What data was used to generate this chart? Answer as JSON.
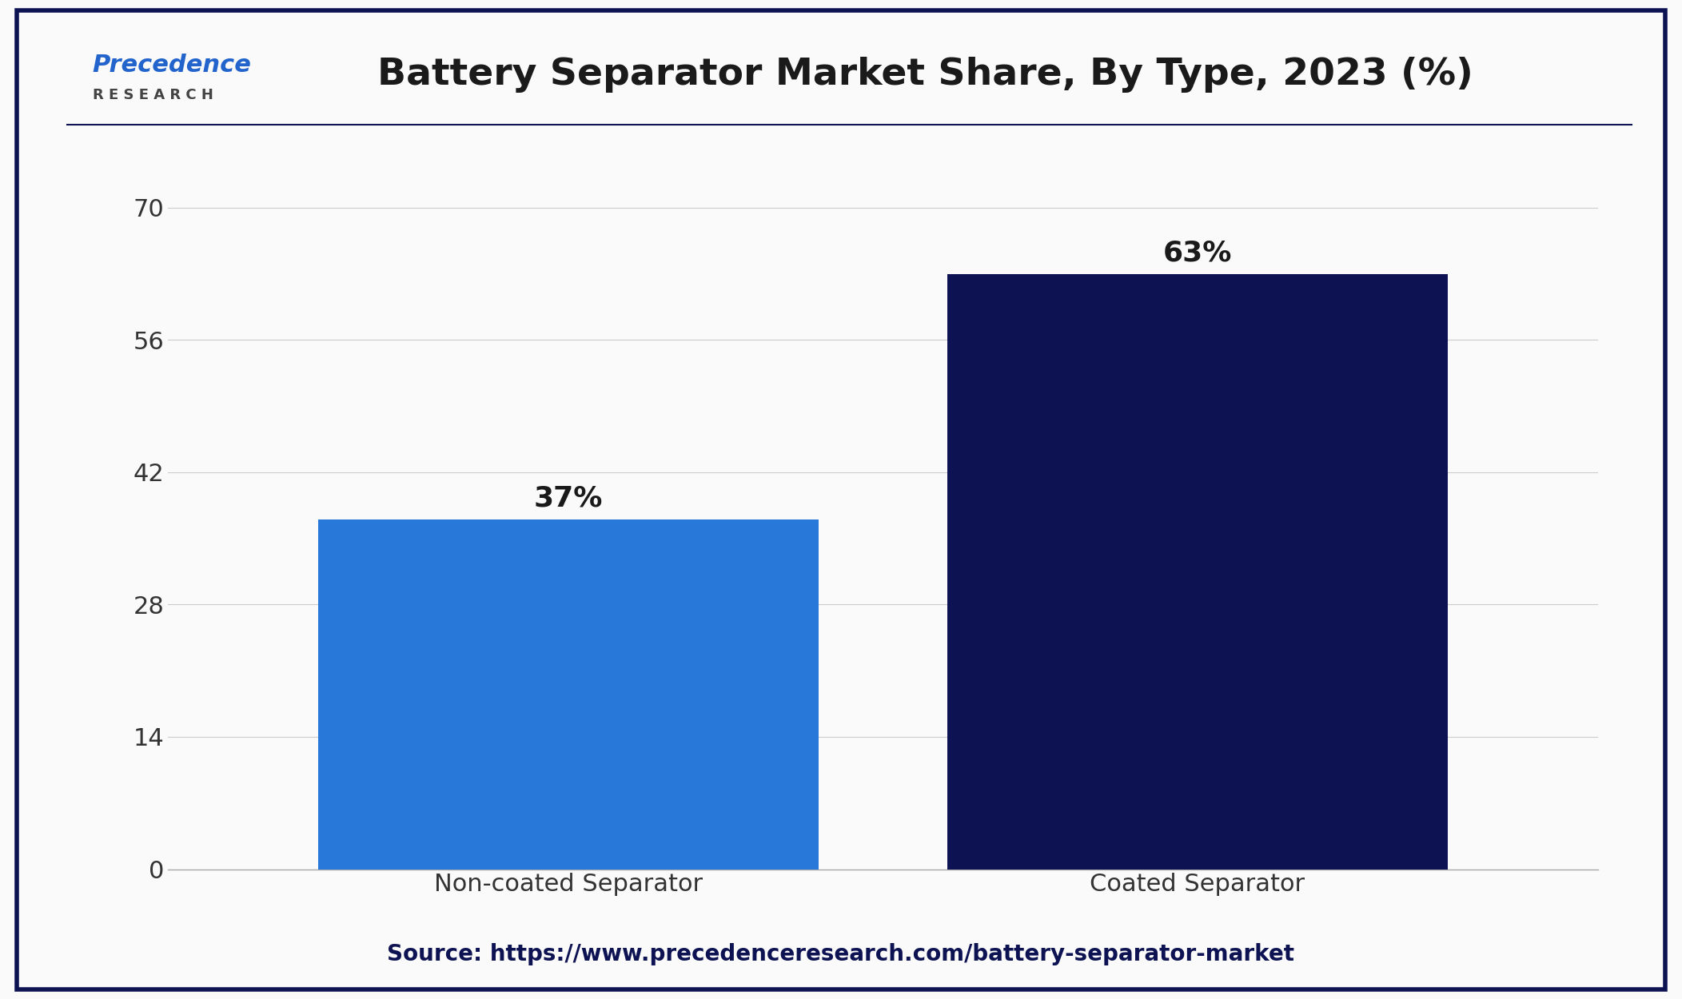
{
  "title": "Battery Separator Market Share, By Type, 2023 (%)",
  "categories": [
    "Non-coated Separator",
    "Coated Separator"
  ],
  "values": [
    37,
    63
  ],
  "labels": [
    "37%",
    "63%"
  ],
  "bar_colors": [
    "#2878D9",
    "#0D1252"
  ],
  "background_color": "#FAFAFA",
  "yticks": [
    0,
    14,
    28,
    42,
    56,
    70
  ],
  "ylim": [
    0,
    74
  ],
  "source_text": "Source: https://www.precedenceresearch.com/battery-separator-market",
  "title_color": "#1a1a1a",
  "source_color": "#0D1252",
  "label_color": "#1a1a1a",
  "tick_color": "#333333",
  "grid_color": "#cccccc",
  "border_color": "#0D1252",
  "bar_width": 0.35,
  "logo_precedence_color": "#2264CC",
  "logo_research_color": "#444444"
}
